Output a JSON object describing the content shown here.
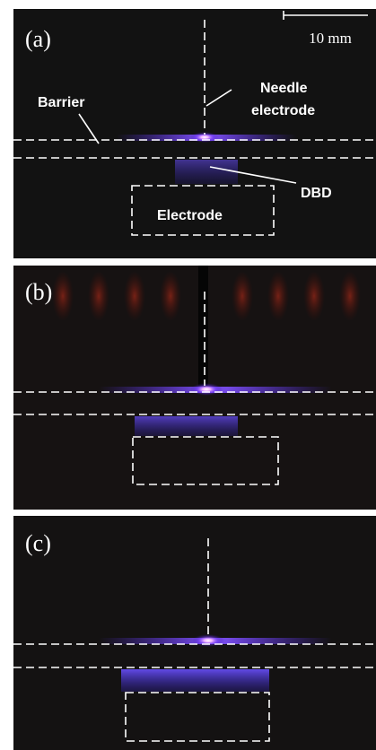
{
  "panels": [
    {
      "label": "(a)"
    },
    {
      "label": "(b)"
    },
    {
      "label": "(c)"
    }
  ],
  "scale_bar": "10 mm",
  "annotations": {
    "barrier": "Barrier",
    "needle": [
      "Needle",
      "electrode"
    ],
    "dbd": "DBD",
    "electrode": "Electrode"
  }
}
